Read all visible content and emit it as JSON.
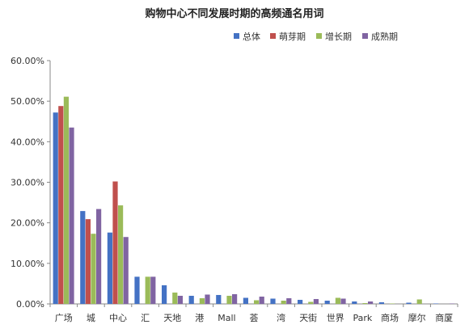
{
  "chart_data": {
    "type": "bar",
    "title": "购物中心不同发展时期的高频通名用词",
    "xlabel": "",
    "ylabel": "",
    "ylim": [
      0,
      60
    ],
    "yticks": [
      "0.00%",
      "10.00%",
      "20.00%",
      "30.00%",
      "40.00%",
      "50.00%",
      "60.00%"
    ],
    "legend_position": "top-right",
    "grid": false,
    "categories": [
      "广场",
      "城",
      "中心",
      "汇",
      "天地",
      "港",
      "Mall",
      "荟",
      "湾",
      "天街",
      "世界",
      "Park",
      "商场",
      "摩尔",
      "商厦"
    ],
    "series": [
      {
        "name": "总体",
        "color": "#4472C4",
        "values": [
          47.2,
          22.9,
          17.6,
          6.7,
          4.6,
          2.0,
          2.2,
          1.5,
          1.3,
          1.0,
          0.8,
          0.6,
          0.4,
          0.3,
          0.1
        ]
      },
      {
        "name": "萌芽期",
        "color": "#C0504D",
        "values": [
          48.8,
          20.9,
          30.2,
          0,
          0,
          0,
          0,
          0,
          0,
          0,
          0,
          0,
          0,
          0,
          0
        ]
      },
      {
        "name": "增长期",
        "color": "#9BBB59",
        "values": [
          51.1,
          17.3,
          24.3,
          6.7,
          2.8,
          1.4,
          2.0,
          0.9,
          0.8,
          0.5,
          1.5,
          0.2,
          0.1,
          1.1,
          0
        ]
      },
      {
        "name": "成熟期",
        "color": "#8064A2",
        "values": [
          43.5,
          23.4,
          16.5,
          6.7,
          2.0,
          2.3,
          2.4,
          1.8,
          1.4,
          1.2,
          1.3,
          0.6,
          0.0,
          0.0,
          0.1
        ]
      }
    ]
  }
}
